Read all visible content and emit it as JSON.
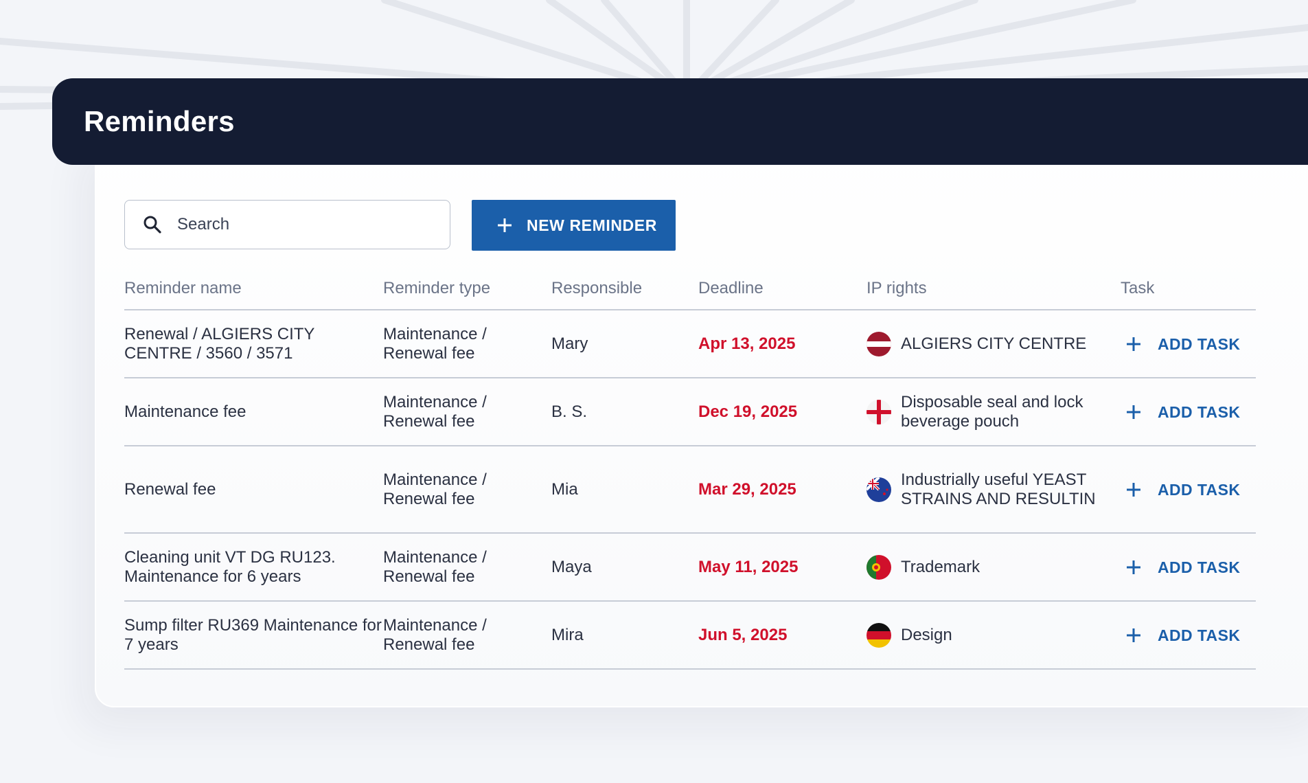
{
  "header": {
    "title": "Reminders"
  },
  "toolbar": {
    "search_placeholder": "Search",
    "new_reminder_label": "NEW REMINDER"
  },
  "table": {
    "columns": [
      "Reminder name",
      "Reminder type",
      "Responsible",
      "Deadline",
      "IP rights",
      "Task"
    ],
    "rows": [
      {
        "name": "Renewal / ALGIERS CITY CENTRE / 3560 / 3571",
        "type": "Maintenance / Renewal fee",
        "responsible": "Mary",
        "deadline": "Apr 13, 2025",
        "ip_right": "ALGIERS CITY CENTRE",
        "flag": "latvia-flag-icon",
        "task_label": "ADD TASK"
      },
      {
        "name": "Maintenance fee",
        "type": "Maintenance / Renewal fee",
        "responsible": "B. S.",
        "deadline": "Dec 19, 2025",
        "ip_right": "Disposable seal and lock beverage pouch",
        "flag": "england-flag-icon",
        "task_label": "ADD TASK"
      },
      {
        "name": "Renewal fee",
        "type": "Maintenance / Renewal fee",
        "responsible": "Mia",
        "deadline": "Mar 29, 2025",
        "ip_right": "Industrially useful YEAST STRAINS AND RESULTIN",
        "flag": "new-zealand-flag-icon",
        "task_label": "ADD TASK"
      },
      {
        "name": "Cleaning unit VT DG RU123. Maintenance for 6 years",
        "type": "Maintenance / Renewal fee",
        "responsible": "Maya",
        "deadline": "May 11, 2025",
        "ip_right": "Trademark",
        "flag": "portugal-flag-icon",
        "task_label": "ADD TASK"
      },
      {
        "name": "Sump filter RU369 Maintenance for 7 years",
        "type": "Maintenance / Renewal fee",
        "responsible": "Mira",
        "deadline": "Jun 5, 2025",
        "ip_right": "Design",
        "flag": "germany-flag-icon",
        "task_label": "ADD TASK"
      }
    ]
  },
  "colors": {
    "header_bg": "#141c33",
    "accent": "#1b5faa",
    "deadline": "#d0102b",
    "page_bg": "#f3f5f9"
  }
}
